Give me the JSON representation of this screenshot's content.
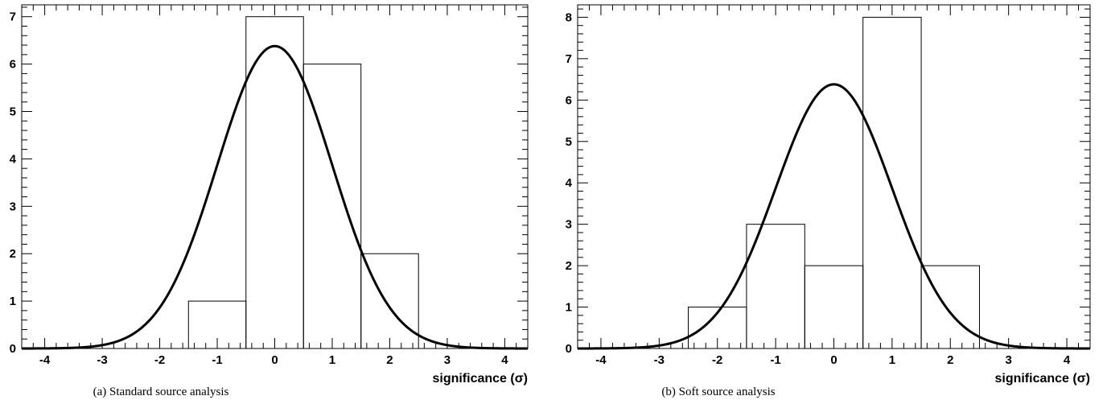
{
  "chart_data": [
    {
      "type": "bar",
      "caption": "(a) Standard source analysis",
      "xlabel": "significance (σ)",
      "ylabel": "",
      "xlim": [
        -4.4,
        4.4
      ],
      "ylim": [
        0,
        7.25
      ],
      "x_ticks": [
        -4,
        -3,
        -2,
        -1,
        0,
        1,
        2,
        3,
        4
      ],
      "y_ticks": [
        0,
        1,
        2,
        3,
        4,
        5,
        6,
        7
      ],
      "bins": [
        {
          "x_low": -1.5,
          "x_high": -0.5,
          "count": 1
        },
        {
          "x_low": -0.5,
          "x_high": 0.5,
          "count": 7
        },
        {
          "x_low": 0.5,
          "x_high": 1.5,
          "count": 6
        },
        {
          "x_low": 1.5,
          "x_high": 2.5,
          "count": 2
        }
      ],
      "curve": {
        "kind": "gaussian",
        "mean": 0,
        "sigma": 1,
        "peak": 6.38
      }
    },
    {
      "type": "bar",
      "caption": "(b) Soft source analysis",
      "xlabel": "significance (σ)",
      "ylabel": "",
      "xlim": [
        -4.4,
        4.4
      ],
      "ylim": [
        0,
        8.3
      ],
      "x_ticks": [
        -4,
        -3,
        -2,
        -1,
        0,
        1,
        2,
        3,
        4
      ],
      "y_ticks": [
        0,
        1,
        2,
        3,
        4,
        5,
        6,
        7,
        8
      ],
      "bins": [
        {
          "x_low": -2.5,
          "x_high": -1.5,
          "count": 1
        },
        {
          "x_low": -1.5,
          "x_high": -0.5,
          "count": 3
        },
        {
          "x_low": -0.5,
          "x_high": 0.5,
          "count": 2
        },
        {
          "x_low": 0.5,
          "x_high": 1.5,
          "count": 8
        },
        {
          "x_low": 1.5,
          "x_high": 2.5,
          "count": 2
        }
      ],
      "curve": {
        "kind": "gaussian",
        "mean": 0,
        "sigma": 1,
        "peak": 6.38
      }
    }
  ]
}
